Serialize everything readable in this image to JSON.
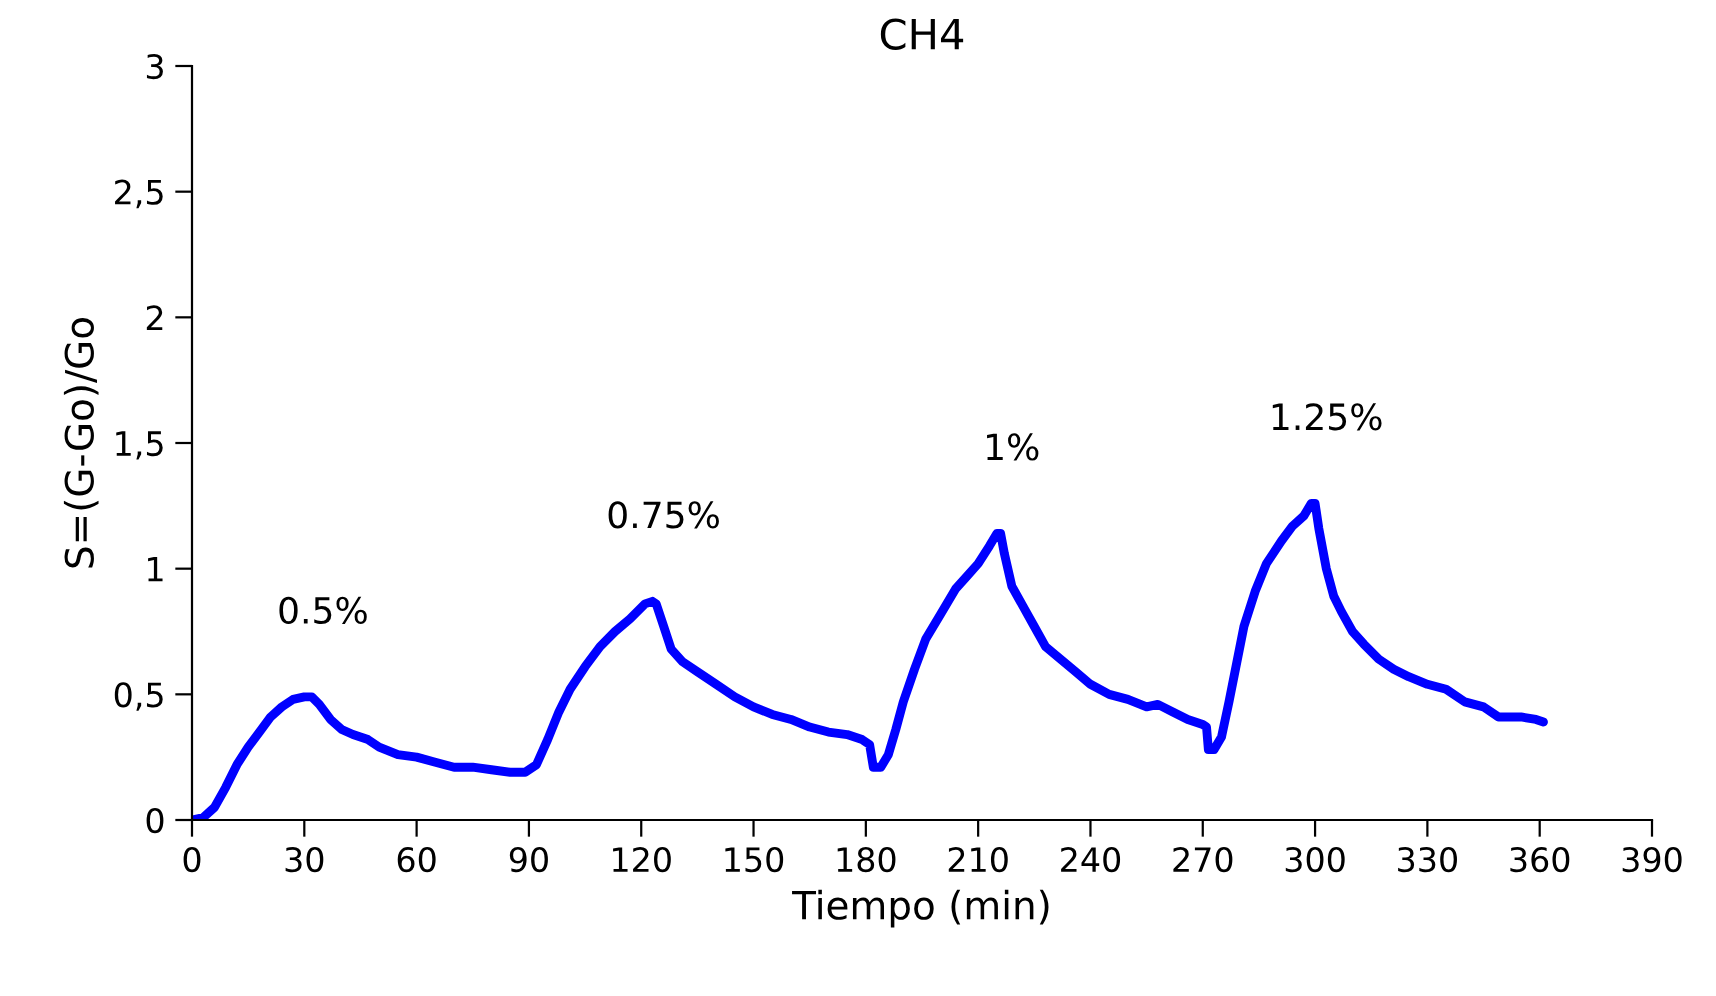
{
  "chart_data": {
    "type": "line",
    "title": "CH4",
    "xlabel": "Tiempo (min)",
    "ylabel": "S=(G-Go)/Go",
    "series": [
      {
        "color": "#0000ff",
        "x": [
          0,
          3,
          6,
          9,
          12,
          15,
          18,
          21,
          24,
          27,
          30,
          32,
          34,
          37,
          40,
          43,
          47,
          50,
          55,
          60,
          65,
          70,
          75,
          80,
          85,
          89,
          92,
          95,
          98,
          101,
          105,
          109,
          113,
          117,
          121,
          123,
          124,
          126,
          128,
          131,
          135,
          140,
          145,
          150,
          155,
          160,
          165,
          170,
          175,
          179,
          181,
          182,
          184,
          186,
          188,
          190,
          193,
          196,
          200,
          204,
          207,
          210,
          213,
          215,
          216,
          217,
          219,
          222,
          225,
          228,
          232,
          236,
          240,
          245,
          250,
          255,
          258,
          262,
          266,
          270,
          271,
          271.5,
          273,
          275,
          277,
          279,
          281,
          284,
          287,
          291,
          294,
          297,
          299,
          300,
          301,
          303,
          305,
          307,
          310,
          313,
          317,
          321,
          325,
          330,
          335,
          340,
          345,
          349,
          355,
          359,
          361
        ],
        "values": [
          0,
          0.01,
          0.05,
          0.13,
          0.22,
          0.29,
          0.35,
          0.41,
          0.45,
          0.48,
          0.49,
          0.49,
          0.46,
          0.4,
          0.36,
          0.34,
          0.32,
          0.29,
          0.26,
          0.25,
          0.23,
          0.21,
          0.21,
          0.2,
          0.19,
          0.19,
          0.22,
          0.32,
          0.43,
          0.52,
          0.61,
          0.69,
          0.75,
          0.8,
          0.86,
          0.87,
          0.86,
          0.77,
          0.68,
          0.63,
          0.59,
          0.54,
          0.49,
          0.45,
          0.42,
          0.4,
          0.37,
          0.35,
          0.34,
          0.32,
          0.3,
          0.21,
          0.21,
          0.26,
          0.36,
          0.47,
          0.6,
          0.72,
          0.82,
          0.92,
          0.97,
          1.02,
          1.09,
          1.14,
          1.14,
          1.06,
          0.93,
          0.85,
          0.77,
          0.69,
          0.64,
          0.59,
          0.54,
          0.5,
          0.48,
          0.45,
          0.46,
          0.43,
          0.4,
          0.38,
          0.37,
          0.28,
          0.28,
          0.33,
          0.47,
          0.62,
          0.77,
          0.91,
          1.02,
          1.11,
          1.17,
          1.21,
          1.26,
          1.26,
          1.16,
          1.0,
          0.89,
          0.83,
          0.75,
          0.7,
          0.64,
          0.6,
          0.57,
          0.54,
          0.52,
          0.47,
          0.45,
          0.41,
          0.41,
          0.4,
          0.39
        ]
      }
    ],
    "annotations": [
      "0.5%",
      "0.75%",
      "1%",
      "1.25%"
    ],
    "xlim": [
      0,
      390
    ],
    "xticks": [
      0,
      30,
      60,
      90,
      120,
      150,
      180,
      210,
      240,
      270,
      300,
      330,
      360,
      390
    ],
    "ylim": [
      0,
      3
    ],
    "yticks": [
      0,
      {
        "value": 0.5,
        "label": "0,5"
      },
      1,
      {
        "value": 1.5,
        "label": "1,5"
      },
      2,
      {
        "value": 2.5,
        "label": "2,5"
      },
      3
    ],
    "grid": false,
    "legend": false,
    "marker": "none",
    "line_style": "solid"
  }
}
